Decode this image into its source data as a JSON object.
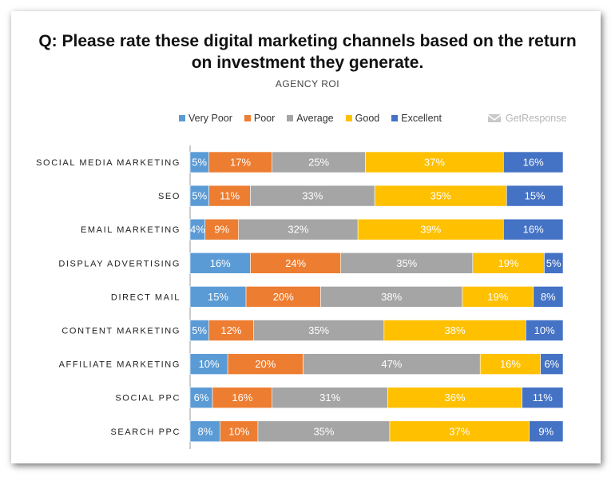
{
  "header": {
    "title_line1": "Q: Please rate these digital marketing channels based on the return",
    "title_line2": "on investment they generate.",
    "subtitle": "AGENCY ROI"
  },
  "brand": {
    "name": "GetResponse",
    "icon": "envelope-icon"
  },
  "chart_data": {
    "type": "bar",
    "orientation": "horizontal",
    "stacked": true,
    "categories": [
      "SOCIAL MEDIA MARKETING",
      "SEO",
      "EMAIL MARKETING",
      "DISPLAY ADVERTISING",
      "DIRECT MAIL",
      "CONTENT MARKETING",
      "AFFILIATE MARKETING",
      "SOCIAL PPC",
      "SEARCH PPC"
    ],
    "legend_position": "top",
    "series": [
      {
        "name": "Very Poor",
        "color": "#5b9bd5",
        "values": [
          5,
          5,
          4,
          16,
          15,
          5,
          10,
          6,
          8
        ]
      },
      {
        "name": "Poor",
        "color": "#ed7d31",
        "values": [
          17,
          11,
          9,
          24,
          20,
          12,
          20,
          16,
          10
        ]
      },
      {
        "name": "Average",
        "color": "#a5a5a5",
        "values": [
          25,
          33,
          32,
          35,
          38,
          35,
          47,
          31,
          35
        ]
      },
      {
        "name": "Good",
        "color": "#ffc000",
        "values": [
          37,
          35,
          39,
          19,
          19,
          38,
          16,
          36,
          37
        ]
      },
      {
        "name": "Excellent",
        "color": "#4472c4",
        "values": [
          16,
          15,
          16,
          5,
          8,
          10,
          6,
          11,
          9
        ]
      }
    ]
  }
}
